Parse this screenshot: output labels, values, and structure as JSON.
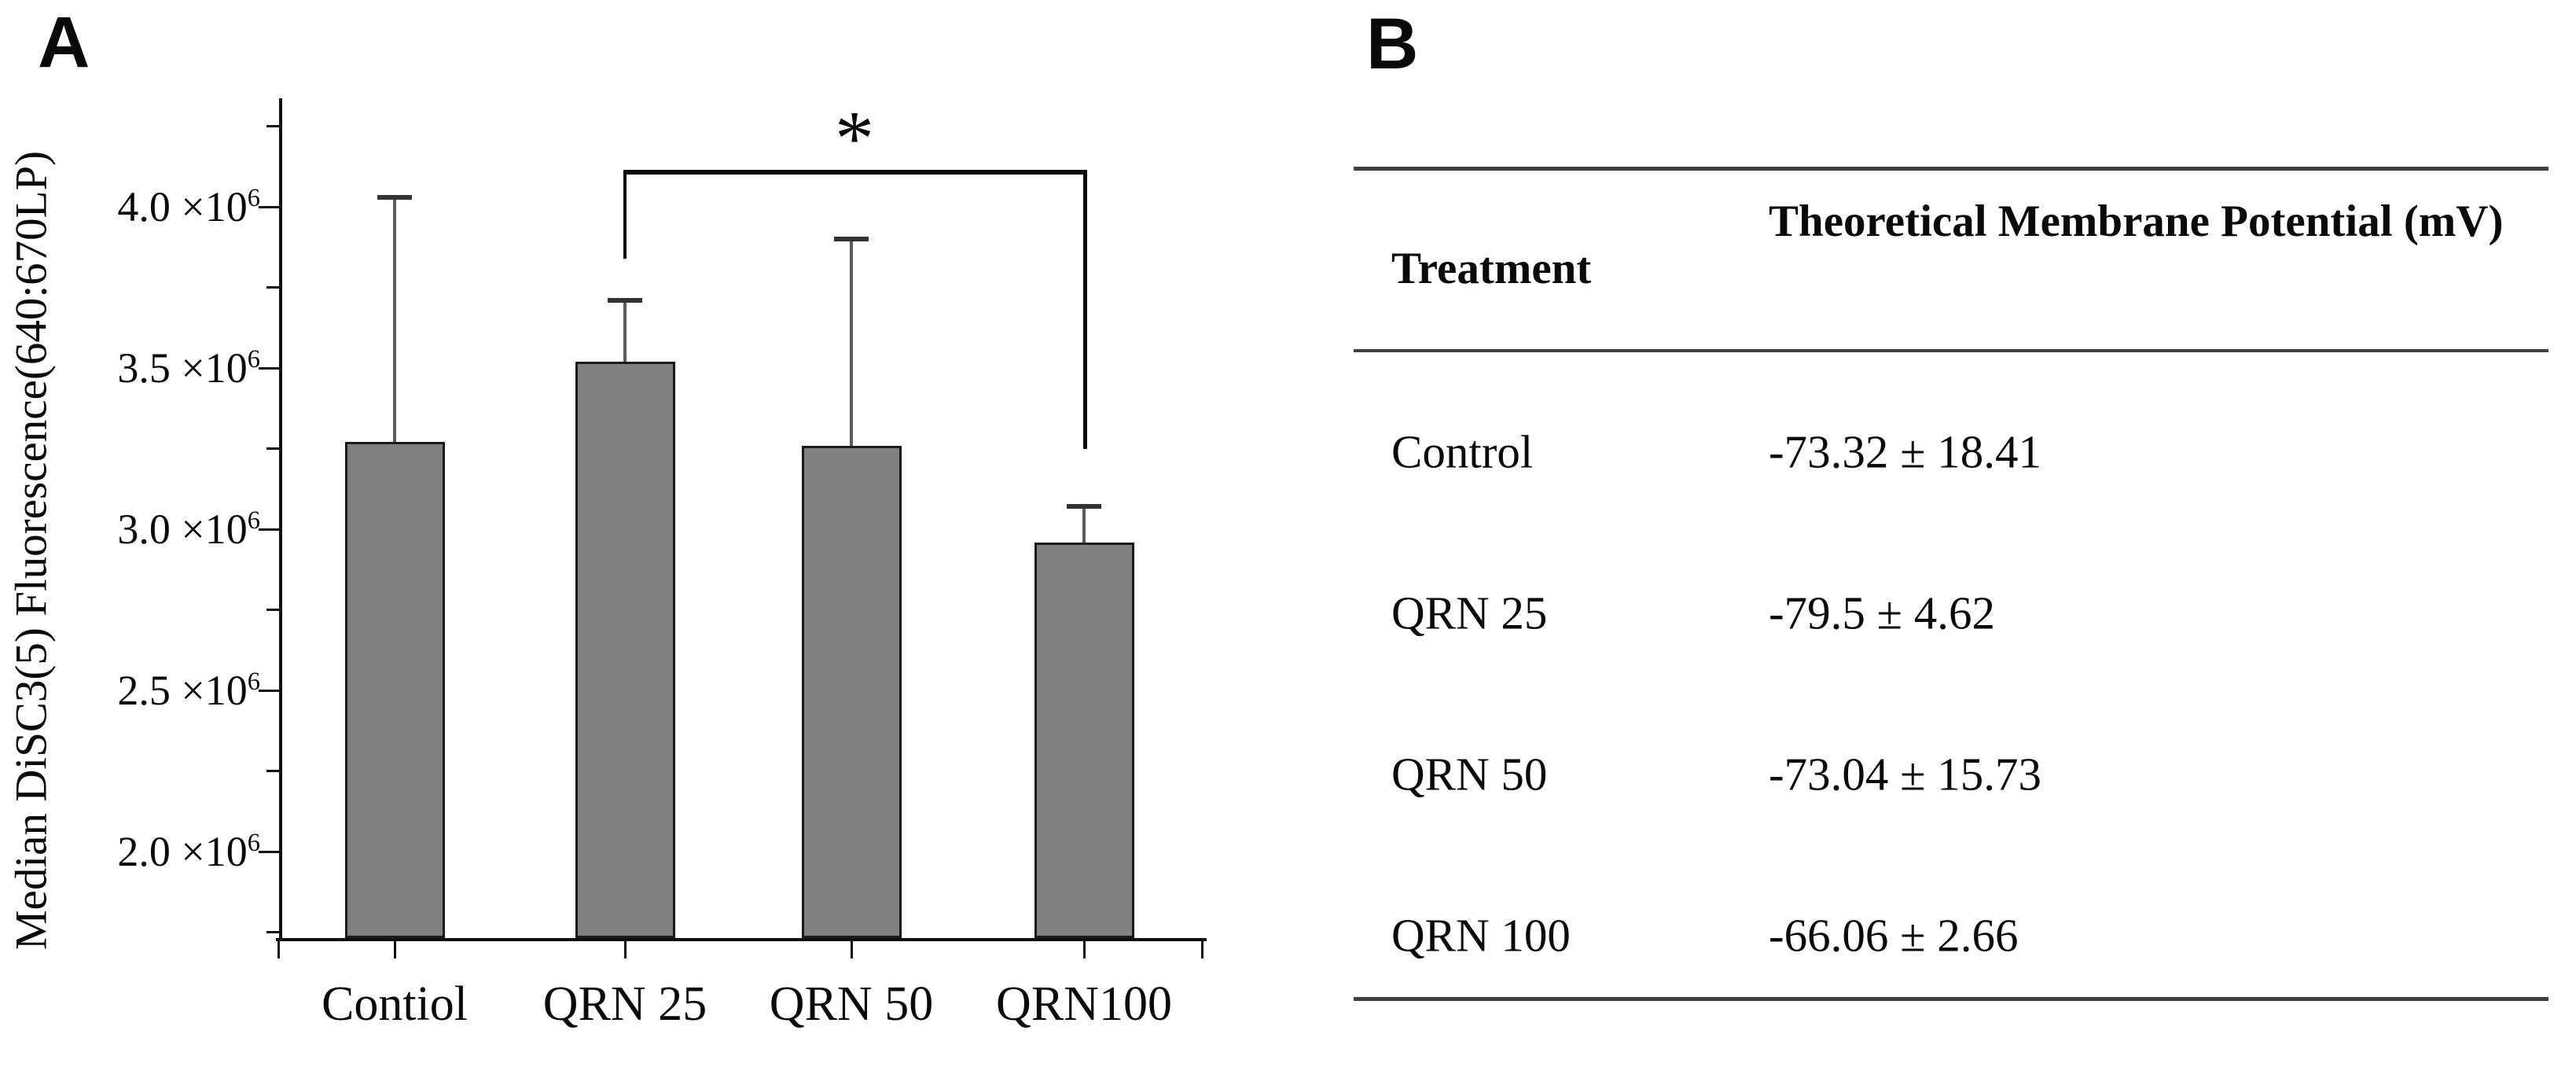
{
  "panel_a": {
    "label": "A",
    "significance_star": "*"
  },
  "chart_data": {
    "type": "bar",
    "title": "",
    "xlabel": "",
    "ylabel": "Median DiSC3(5) Fluorescence(640:670LP)",
    "categories": [
      "Contiol",
      "QRN 25",
      "QRN 50",
      "QRN100"
    ],
    "values": [
      3270000,
      3520000,
      3260000,
      2960000
    ],
    "error_upper": [
      760000,
      190000,
      640000,
      110000
    ],
    "error_top_values": [
      4030000,
      3710000,
      3900000,
      3070000
    ],
    "ylim": [
      1732000,
      4337000
    ],
    "yticks": [
      {
        "value": 4000000,
        "base": "4.0 ×10",
        "exp": "6"
      },
      {
        "value": 3500000,
        "base": "3.5 ×10",
        "exp": "6"
      },
      {
        "value": 3000000,
        "base": "3.0 ×10",
        "exp": "6"
      },
      {
        "value": 2500000,
        "base": "2.5 ×10",
        "exp": "6"
      },
      {
        "value": 2000000,
        "base": "2.0 ×10",
        "exp": "6"
      }
    ],
    "minor_tick_values": [
      4250000,
      3750000,
      3250000,
      2750000,
      2250000,
      1750000
    ],
    "grid": false,
    "legend": false,
    "bar_color": "#808080",
    "bar_border_color": "#1b1b1b",
    "significance": {
      "label": "*",
      "from_category": "QRN 25",
      "to_category": "QRN100",
      "from_index": 1,
      "to_index": 3,
      "bracket_top_value": 4115000,
      "left_leg_bottom_value": 3840000,
      "right_leg_bottom_value": 3250000
    }
  },
  "panel_b": {
    "label": "B",
    "table": {
      "col1_header": "Treatment",
      "col2_header": "Theoretical Membrane Potential (mV)",
      "rows": [
        {
          "treatment": "Control",
          "potential": "-73.32 ± 18.41"
        },
        {
          "treatment": "QRN 25",
          "potential": "-79.5 ± 4.62"
        },
        {
          "treatment": "QRN 50",
          "potential": "-73.04 ± 15.73"
        },
        {
          "treatment": "QRN 100",
          "potential": "-66.06 ± 2.66"
        }
      ]
    }
  }
}
